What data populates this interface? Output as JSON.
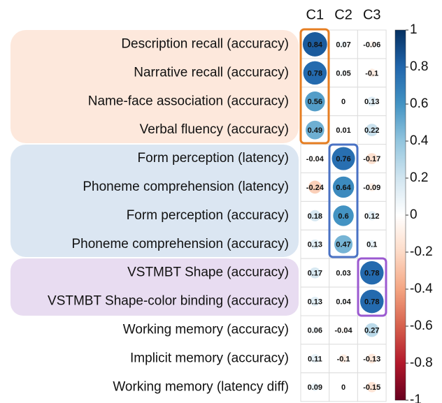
{
  "chart_data": {
    "type": "corrplot",
    "rows": [
      "Description recall (accuracy)",
      "Narrative recall (accuracy)",
      "Name-face association (accuracy)",
      "Verbal fluency (accuracy)",
      "Form perception (latency)",
      "Phoneme comprehension (latency)",
      "Form perception (accuracy)",
      "Phoneme comprehension (accuracy)",
      "VSTMBT Shape (accuracy)",
      "VSTMBT Shape-color binding (accuracy)",
      "Working memory (accuracy)",
      "Implicit memory (accuracy)",
      "Working memory (latency diff)"
    ],
    "columns": [
      "C1",
      "C2",
      "C3"
    ],
    "values": [
      [
        0.84,
        0.07,
        -0.06
      ],
      [
        0.78,
        0.05,
        -0.1
      ],
      [
        0.56,
        0,
        0.13
      ],
      [
        0.49,
        0.01,
        0.22
      ],
      [
        -0.04,
        0.76,
        -0.17
      ],
      [
        -0.24,
        0.64,
        -0.09
      ],
      [
        0.18,
        0.6,
        0.12
      ],
      [
        0.13,
        0.47,
        0.1
      ],
      [
        0.17,
        0.03,
        0.78
      ],
      [
        0.13,
        0.04,
        0.78
      ],
      [
        0.06,
        -0.04,
        0.27
      ],
      [
        0.11,
        -0.1,
        -0.13
      ],
      [
        0.09,
        0,
        -0.15
      ]
    ],
    "clim": [
      -1,
      1
    ],
    "cticks": [
      1,
      0.8,
      0.6,
      0.4,
      0.2,
      0,
      -0.2,
      -0.4,
      -0.6,
      -0.8,
      -1
    ],
    "colorscale": [
      "#67001F",
      "#B2182B",
      "#D6604D",
      "#F4A582",
      "#FDDBC7",
      "#FFFFFF",
      "#D1E5F0",
      "#92C5DE",
      "#4393C3",
      "#2166AC",
      "#053061"
    ]
  }
}
